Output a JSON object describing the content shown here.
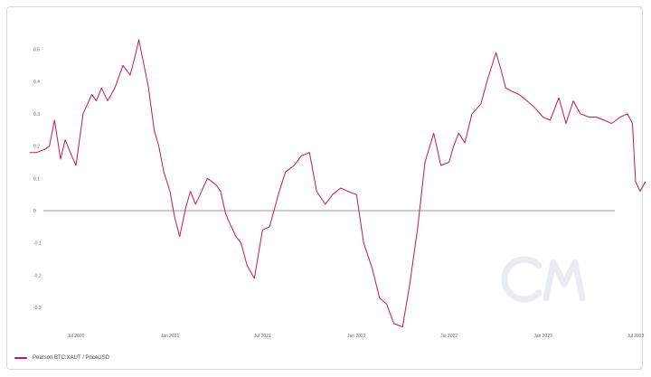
{
  "chart_data": {
    "type": "line",
    "title": "",
    "xlabel": "",
    "ylabel": "",
    "ylim": [
      -0.37,
      0.53
    ],
    "x_ticks": [
      "Jul 2020",
      "Jan 2021",
      "Jul 2021",
      "Jan 2022",
      "Jul 2022",
      "Jan 2023",
      "Jul 2023"
    ],
    "y_ticks": [
      "0.5",
      "0.4",
      "0.3",
      "0.2",
      "0.1",
      "0",
      "-0.1",
      "-0.2",
      "-0.3"
    ],
    "y_tick_values": [
      0.5,
      0.4,
      0.3,
      0.2,
      0.1,
      0,
      -0.1,
      -0.2,
      -0.3
    ],
    "zero_line": true,
    "grid": false,
    "legend_position": "bottom-left",
    "watermark": "CM",
    "series": [
      {
        "name": "Pearson BTC:XAUT / PriceUSD",
        "color": "#c2185b",
        "x": [
          "2020-04-01",
          "2020-04-15",
          "2020-05-01",
          "2020-05-10",
          "2020-05-20",
          "2020-06-01",
          "2020-06-10",
          "2020-06-20",
          "2020-07-01",
          "2020-07-15",
          "2020-08-01",
          "2020-08-10",
          "2020-08-20",
          "2020-09-01",
          "2020-09-15",
          "2020-10-01",
          "2020-10-15",
          "2020-10-25",
          "2020-11-01",
          "2020-11-10",
          "2020-11-20",
          "2020-12-01",
          "2020-12-10",
          "2020-12-20",
          "2021-01-01",
          "2021-01-10",
          "2021-01-20",
          "2021-02-01",
          "2021-02-10",
          "2021-02-20",
          "2021-03-01",
          "2021-03-15",
          "2021-04-01",
          "2021-04-10",
          "2021-04-20",
          "2021-05-01",
          "2021-05-10",
          "2021-05-20",
          "2021-06-01",
          "2021-06-15",
          "2021-07-01",
          "2021-07-15",
          "2021-08-01",
          "2021-08-15",
          "2021-09-01",
          "2021-09-15",
          "2021-10-01",
          "2021-10-15",
          "2021-11-01",
          "2021-11-15",
          "2021-12-01",
          "2021-12-15",
          "2022-01-01",
          "2022-01-15",
          "2022-02-01",
          "2022-02-15",
          "2022-03-01",
          "2022-03-15",
          "2022-04-01",
          "2022-04-15",
          "2022-05-01",
          "2022-05-15",
          "2022-06-01",
          "2022-06-15",
          "2022-07-01",
          "2022-07-10",
          "2022-07-20",
          "2022-08-01",
          "2022-08-15",
          "2022-09-01",
          "2022-09-15",
          "2022-10-01",
          "2022-10-10",
          "2022-10-20",
          "2022-11-01",
          "2022-11-15",
          "2022-12-01",
          "2022-12-15",
          "2023-01-01",
          "2023-01-15",
          "2023-02-01",
          "2023-02-15",
          "2023-03-01",
          "2023-03-15",
          "2023-04-01",
          "2023-04-15",
          "2023-05-01",
          "2023-05-15",
          "2023-06-01",
          "2023-06-15",
          "2023-06-25",
          "2023-07-01",
          "2023-07-10",
          "2023-07-20"
        ],
        "values": [
          0.18,
          0.18,
          0.19,
          0.2,
          0.28,
          0.16,
          0.22,
          0.18,
          0.14,
          0.3,
          0.36,
          0.34,
          0.38,
          0.34,
          0.38,
          0.45,
          0.42,
          0.48,
          0.53,
          0.46,
          0.38,
          0.25,
          0.2,
          0.12,
          0.06,
          -0.02,
          -0.08,
          0.01,
          0.06,
          0.02,
          0.05,
          0.1,
          0.08,
          0.06,
          -0.01,
          -0.05,
          -0.08,
          -0.1,
          -0.17,
          -0.21,
          -0.06,
          -0.05,
          0.05,
          0.12,
          0.14,
          0.17,
          0.18,
          0.06,
          0.02,
          0.05,
          0.07,
          0.06,
          0.05,
          -0.1,
          -0.18,
          -0.27,
          -0.29,
          -0.35,
          -0.36,
          -0.23,
          -0.05,
          0.15,
          0.24,
          0.14,
          0.15,
          0.2,
          0.24,
          0.21,
          0.3,
          0.33,
          0.41,
          0.49,
          0.44,
          0.38,
          0.37,
          0.36,
          0.34,
          0.32,
          0.29,
          0.28,
          0.35,
          0.27,
          0.34,
          0.3,
          0.29,
          0.29,
          0.28,
          0.27,
          0.29,
          0.3,
          0.27,
          0.09,
          0.06,
          0.09
        ]
      }
    ]
  }
}
